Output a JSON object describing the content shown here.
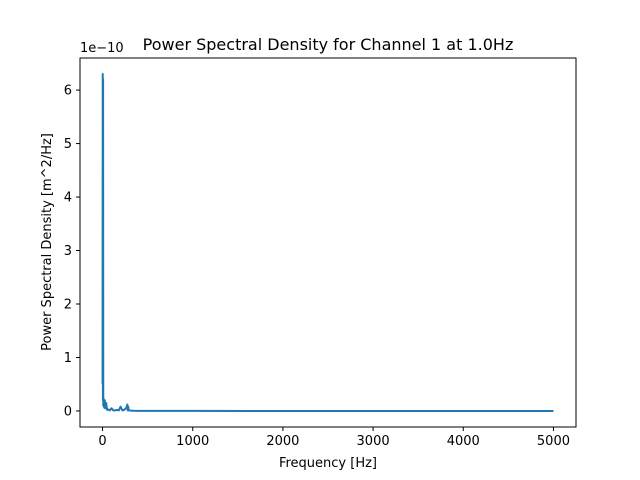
{
  "chart_data": {
    "type": "line",
    "title": "Power Spectral Density for Channel 1 at 1.0Hz",
    "xlabel": "Frequency [Hz]",
    "ylabel": "Power Spectral Density [m^2/Hz]",
    "y_offset_label": "1e−10",
    "y_scale": 1e-10,
    "xlim": [
      -250,
      5250
    ],
    "ylim": [
      -0.3,
      6.6
    ],
    "x_ticks": [
      0,
      1000,
      2000,
      3000,
      4000,
      5000
    ],
    "x_tick_labels": [
      "0",
      "1000",
      "2000",
      "3000",
      "4000",
      "5000"
    ],
    "y_ticks": [
      0,
      1,
      2,
      3,
      4,
      5,
      6
    ],
    "y_tick_labels": [
      "0",
      "1",
      "2",
      "3",
      "4",
      "5",
      "6"
    ],
    "grid": false,
    "legend": "none",
    "series": [
      {
        "color": "#1f77b4",
        "x": [
          0,
          2,
          4,
          6,
          8,
          10,
          12,
          14,
          16,
          20,
          25,
          30,
          40,
          50,
          60,
          80,
          100,
          120,
          140,
          160,
          180,
          200,
          220,
          240,
          260,
          275,
          280,
          285,
          290,
          300,
          320,
          350,
          400,
          500,
          1000,
          2000,
          3000,
          4000,
          5000
        ],
        "y": [
          0.5,
          6.3,
          0.2,
          6.2,
          0.1,
          0.25,
          0.15,
          0.1,
          0.08,
          0.06,
          0.2,
          0.05,
          0.15,
          0.02,
          0.03,
          0.01,
          0.05,
          0.01,
          0.01,
          0.02,
          0.01,
          0.08,
          0.01,
          0.02,
          0.05,
          0.12,
          0.01,
          0.08,
          0.01,
          0.01,
          0.005,
          0.003,
          0.002,
          0.001,
          0.0005,
          0.0002,
          0.0001,
          0.0001,
          0.0001
        ]
      }
    ]
  }
}
